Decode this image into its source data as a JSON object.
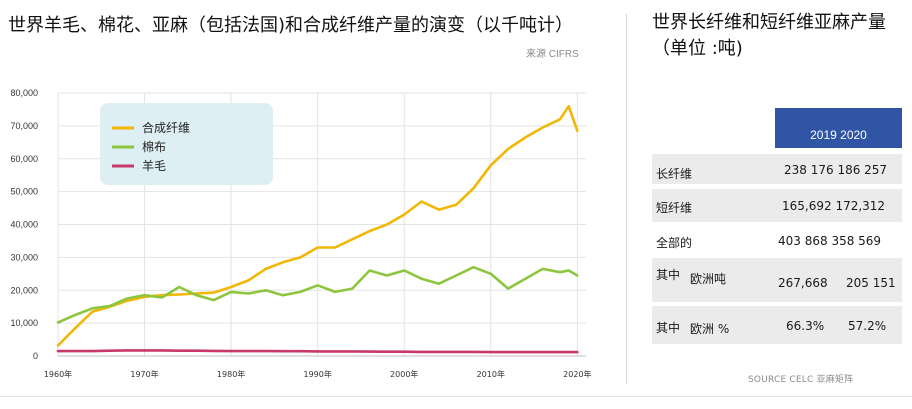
{
  "title": "世界羊毛、棉花、亚麻（包括法国)和合成纤维产量的演变（以千吨计）",
  "source": "来源 CIFRS",
  "chart_data": {
    "type": "line",
    "xlim": [
      1960,
      2021
    ],
    "ylim": [
      0,
      80000
    ],
    "x_ticks": [
      1960,
      1970,
      1980,
      1990,
      2000,
      2010,
      2020
    ],
    "x_tick_labels": [
      "1960年",
      "1970年",
      "1980年",
      "1990年",
      "2000年",
      "2010年",
      "2020年"
    ],
    "y_ticks": [
      0,
      10000,
      20000,
      30000,
      40000,
      50000,
      60000,
      70000,
      80000
    ],
    "y_tick_labels": [
      "0",
      "10,000",
      "20,000",
      "30,000",
      "40,000",
      "50,000",
      "60,000",
      "70,000",
      "80,000"
    ],
    "grid": true,
    "legend_position": "top-left",
    "x": [
      1960,
      1962,
      1964,
      1966,
      1968,
      1970,
      1972,
      1974,
      1976,
      1978,
      1980,
      1982,
      1984,
      1986,
      1988,
      1990,
      1992,
      1994,
      1996,
      1998,
      2000,
      2002,
      2004,
      2006,
      2008,
      2010,
      2012,
      2014,
      2016,
      2018,
      2019,
      2020
    ],
    "series": [
      {
        "name": "合成纤维",
        "color": "#f2b705",
        "values": [
          3200,
          8500,
          13500,
          15000,
          16800,
          18000,
          18500,
          18700,
          19000,
          19300,
          21000,
          23000,
          26500,
          28500,
          30000,
          33000,
          33000,
          35500,
          38000,
          40000,
          43000,
          47000,
          44500,
          46000,
          51000,
          58000,
          63000,
          66500,
          69500,
          72000,
          76000,
          68500
        ]
      },
      {
        "name": "棉布",
        "color": "#8cc63f",
        "values": [
          10200,
          12500,
          14500,
          15200,
          17500,
          18500,
          17800,
          21000,
          18500,
          17000,
          19500,
          19000,
          20000,
          18500,
          19500,
          21500,
          19500,
          20500,
          26000,
          24500,
          26000,
          23500,
          22000,
          24500,
          27000,
          25000,
          20500,
          23500,
          26500,
          25500,
          26000,
          24500
        ]
      },
      {
        "name": "羊毛",
        "color": "#c8386b",
        "values": [
          1500,
          1500,
          1500,
          1600,
          1700,
          1700,
          1700,
          1600,
          1600,
          1550,
          1500,
          1500,
          1500,
          1450,
          1450,
          1400,
          1400,
          1400,
          1350,
          1300,
          1300,
          1250,
          1250,
          1250,
          1250,
          1200,
          1200,
          1200,
          1200,
          1200,
          1200,
          1200
        ]
      }
    ]
  },
  "table": {
    "title": "世界长纤维和短纤维亚麻产量（单位 :吨)",
    "header": "2019 2020",
    "rows": [
      {
        "label": "长纤维",
        "value": "238 176 186 257"
      },
      {
        "label": "短纤维",
        "value": "165,692 172,312"
      },
      {
        "label": "全部的",
        "value": "403 868 358 569"
      },
      {
        "label": "其中",
        "sublabel": "欧洲吨",
        "v2019": "267,668",
        "v2020": "205 151"
      },
      {
        "label": "其中",
        "sublabel": "欧洲 %",
        "v2019": "66.3%",
        "v2020": "57.2%"
      }
    ],
    "source": "SOURCE CELC 亚麻矩阵"
  }
}
